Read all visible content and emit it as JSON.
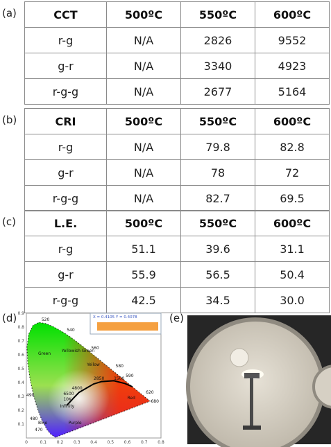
{
  "tables": [
    {
      "label": "(a)",
      "header": [
        "CCT",
        "500ºC",
        "550ºC",
        "600ºC"
      ],
      "rows": [
        [
          "r-g",
          "N/A",
          "2826",
          "9552"
        ],
        [
          "g-r",
          "N/A",
          "3340",
          "4923"
        ],
        [
          "r-g-g",
          "N/A",
          "2677",
          "5164"
        ]
      ]
    },
    {
      "label": "(b)",
      "header": [
        "CRI",
        "500ºC",
        "550ºC",
        "600ºC"
      ],
      "rows": [
        [
          "r-g",
          "N/A",
          "79.8",
          "82.8"
        ],
        [
          "g-r",
          "N/A",
          "78",
          "72"
        ],
        [
          "r-g-g",
          "N/A",
          "82.7",
          "69.5"
        ]
      ]
    },
    {
      "label": "(c)",
      "header": [
        "L.E.",
        "500ºC",
        "550ºC",
        "600ºC"
      ],
      "rows": [
        [
          "r-g",
          "51.1",
          "39.6",
          "31.1"
        ],
        [
          "g-r",
          "55.9",
          "56.5",
          "50.4"
        ],
        [
          "r-g-g",
          "42.5",
          "34.5",
          "30.0"
        ]
      ]
    }
  ],
  "cie": {
    "label": "(d)",
    "readout": "X = 0.4105  Y = 0.4078",
    "x_ticks": [
      "0",
      "0.1",
      "0.2",
      "0.3",
      "0.4",
      "0.5",
      "0.6",
      "0.7",
      "0.8"
    ],
    "y_ticks": [
      "0.1",
      "0.2",
      "0.3",
      "0.4",
      "0.5",
      "0.6",
      "0.7",
      "0.8",
      "0.9"
    ],
    "wavelengths": [
      "520",
      "540",
      "560",
      "580",
      "590",
      "620",
      "680",
      "490",
      "480",
      "470"
    ],
    "regions": [
      "Green",
      "Yellowish Green",
      "Yellow",
      "Red",
      "Blue",
      "Purple"
    ],
    "cct": [
      "Infinity",
      "10K",
      "6500",
      "4800",
      "2850",
      "1500"
    ]
  },
  "photo": {
    "label": "(e)"
  }
}
